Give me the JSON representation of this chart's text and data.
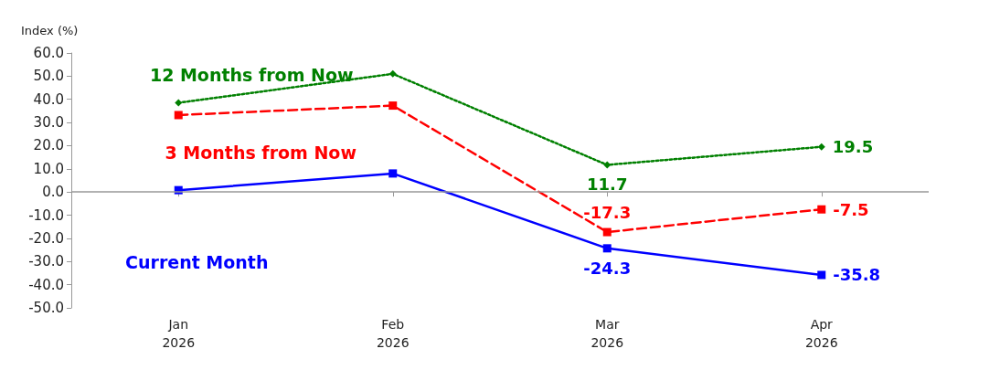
{
  "chart_data": {
    "type": "line",
    "ylabel": "Index (%)",
    "categories": [
      "Jan\n2026",
      "Feb\n2026",
      "Mar\n2026",
      "Apr\n2026"
    ],
    "series": [
      {
        "name": "12 Months from Now",
        "color": "#008000",
        "values": [
          38.5,
          51.0,
          11.7,
          19.5
        ],
        "value_labels": [
          null,
          null,
          "11.7",
          "19.5"
        ],
        "marker": "diamond",
        "line_style": "dotted"
      },
      {
        "name": "3 Months from Now",
        "color": "#ff0000",
        "values": [
          33.2,
          37.3,
          -17.3,
          -7.5
        ],
        "value_labels": [
          null,
          null,
          "-17.3",
          "-7.5"
        ],
        "marker": "square",
        "line_style": "dashed"
      },
      {
        "name": "Current Month",
        "color": "#0000ff",
        "values": [
          0.8,
          8.0,
          -24.3,
          -35.8
        ],
        "value_labels": [
          null,
          null,
          "-24.3",
          "-35.8"
        ],
        "marker": "square",
        "line_style": "solid"
      }
    ],
    "ylim": [
      -50,
      60
    ],
    "yticks": [
      {
        "value": -50,
        "label": "-50.0"
      },
      {
        "value": -40,
        "label": "-40.0"
      },
      {
        "value": -30,
        "label": "-30.0"
      },
      {
        "value": -20,
        "label": "-20.0"
      },
      {
        "value": -10,
        "label": "-10.0"
      },
      {
        "value": 0,
        "label": "0.0"
      },
      {
        "value": 10,
        "label": "10.0"
      },
      {
        "value": 20,
        "label": "20.0"
      },
      {
        "value": 30,
        "label": "30.0"
      },
      {
        "value": 40,
        "label": "40.0"
      },
      {
        "value": 50,
        "label": "50.0"
      },
      {
        "value": 60,
        "label": "60.0"
      }
    ],
    "ref_lines": [
      {
        "axis": "y",
        "value": 0,
        "color": "#999999"
      }
    ],
    "grid": false,
    "legend": false
  }
}
